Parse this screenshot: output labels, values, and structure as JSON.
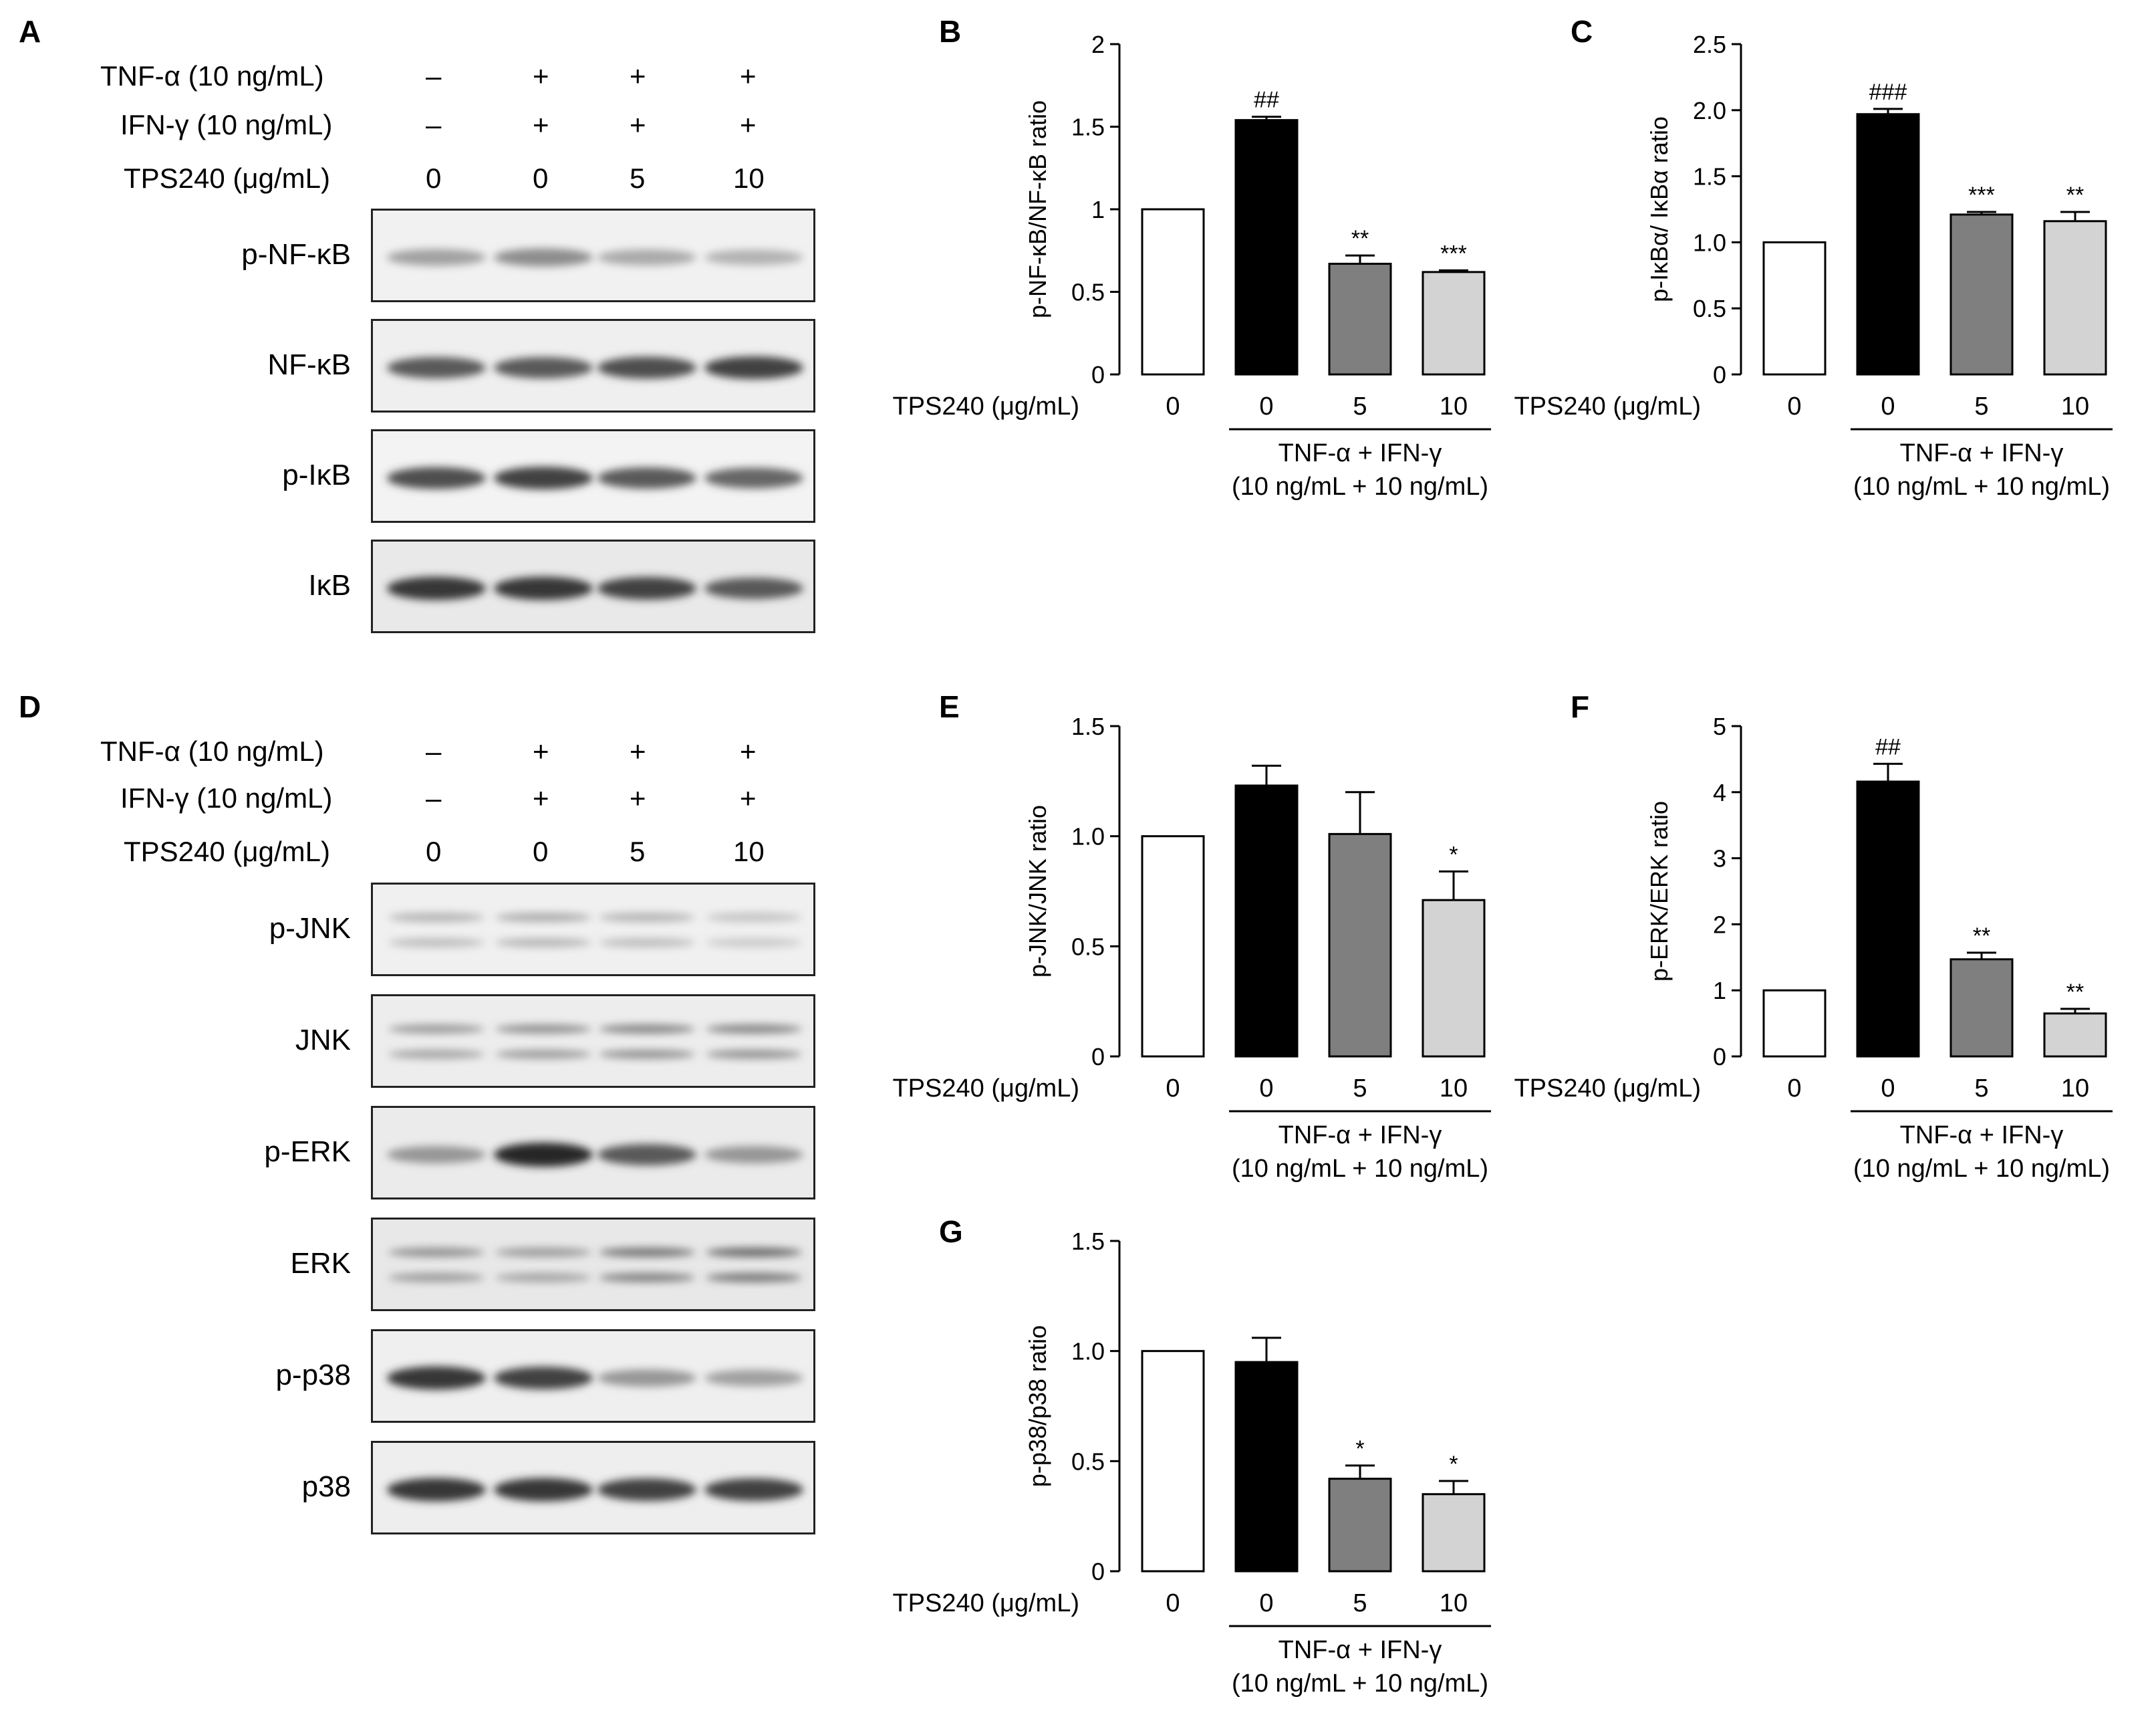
{
  "panels": {
    "A": "A",
    "B": "B",
    "C": "C",
    "D": "D",
    "E": "E",
    "F": "F",
    "G": "G"
  },
  "conditions": {
    "tnf": "TNF-α (10 ng/mL)",
    "ifn": "IFN-γ (10 ng/mL)",
    "tps": "TPS240 (μg/mL)",
    "tnf_marks": [
      "–",
      "+",
      "+",
      "+"
    ],
    "ifn_marks": [
      "–",
      "+",
      "+",
      "+"
    ],
    "tps_doses": [
      "0",
      "0",
      "5",
      "10"
    ]
  },
  "blots_A": [
    {
      "label": "p-NF-κB",
      "bands": [
        0.45,
        0.55,
        0.4,
        0.35
      ],
      "bg": "#f1f1f1",
      "double": false
    },
    {
      "label": "NF-κB",
      "bands": [
        0.8,
        0.8,
        0.85,
        0.9
      ],
      "bg": "#efefef",
      "double": false
    },
    {
      "label": "p-IκB",
      "bands": [
        0.85,
        0.9,
        0.8,
        0.75
      ],
      "bg": "#f3f3f3",
      "double": false
    },
    {
      "label": "IκB",
      "bands": [
        0.95,
        0.95,
        0.9,
        0.8
      ],
      "bg": "#e9e9e9",
      "double": false
    }
  ],
  "blots_D": [
    {
      "label": "p-JNK",
      "bands": [
        0.3,
        0.35,
        0.3,
        0.2
      ],
      "bg": "#f0f0f0",
      "double": true
    },
    {
      "label": "JNK",
      "bands": [
        0.45,
        0.5,
        0.55,
        0.55
      ],
      "bg": "#ededed",
      "double": true
    },
    {
      "label": "p-ERK",
      "bands": [
        0.5,
        1.0,
        0.8,
        0.5
      ],
      "bg": "#ebebeb",
      "double": false
    },
    {
      "label": "ERK",
      "bands": [
        0.5,
        0.45,
        0.65,
        0.7
      ],
      "bg": "#e8e8e8",
      "double": true
    },
    {
      "label": "p-p38",
      "bands": [
        0.95,
        0.9,
        0.5,
        0.45
      ],
      "bg": "#efefef",
      "double": false
    },
    {
      "label": "p38",
      "bands": [
        0.95,
        0.95,
        0.9,
        0.9
      ],
      "bg": "#eeeeee",
      "double": false
    }
  ],
  "bar_colors": [
    "#ffffff",
    "#000000",
    "#7f7f7f",
    "#d3d3d3"
  ],
  "chart_data": [
    {
      "type": "bar",
      "panel": "B",
      "categories": [
        "0",
        "0",
        "5",
        "10"
      ],
      "values": [
        1.0,
        1.54,
        0.67,
        0.62
      ],
      "errors": [
        0,
        0.02,
        0.05,
        0.01
      ],
      "annotations": [
        "",
        "##",
        "**",
        "***"
      ],
      "ylabel": "p-NF-κB/NF-κB ratio",
      "xprefix": "TPS240 (μg/mL)",
      "bracket1": "TNF-α + IFN-γ",
      "bracket2": "(10 ng/mL + 10 ng/mL)",
      "ylim": [
        0,
        2
      ],
      "yticks": [
        0,
        0.5,
        1,
        1.5,
        2
      ],
      "yticklabels": [
        "0",
        "0.5",
        "1",
        "1.5",
        "2"
      ]
    },
    {
      "type": "bar",
      "panel": "C",
      "categories": [
        "0",
        "0",
        "5",
        "10"
      ],
      "values": [
        1.0,
        1.97,
        1.21,
        1.16
      ],
      "errors": [
        0,
        0.04,
        0.02,
        0.07
      ],
      "annotations": [
        "",
        "###",
        "***",
        "**"
      ],
      "ylabel": "p-IκBα/ IκBα ratio",
      "xprefix": "TPS240 (μg/mL)",
      "bracket1": "TNF-α + IFN-γ",
      "bracket2": "(10 ng/mL + 10 ng/mL)",
      "ylim": [
        0,
        2.5
      ],
      "yticks": [
        0,
        0.5,
        1,
        1.5,
        2,
        2.5
      ],
      "yticklabels": [
        "0",
        "0.5",
        "1.0",
        "1.5",
        "2.0",
        "2.5"
      ]
    },
    {
      "type": "bar",
      "panel": "E",
      "categories": [
        "0",
        "0",
        "5",
        "10"
      ],
      "values": [
        1.0,
        1.23,
        1.01,
        0.71
      ],
      "errors": [
        0,
        0.09,
        0.19,
        0.13
      ],
      "annotations": [
        "",
        "",
        "",
        "*"
      ],
      "ylabel": "p-JNK/JNK ratio",
      "xprefix": "TPS240 (μg/mL)",
      "bracket1": "TNF-α + IFN-γ",
      "bracket2": "(10 ng/mL + 10 ng/mL)",
      "ylim": [
        0,
        1.5
      ],
      "yticks": [
        0,
        0.5,
        1,
        1.5
      ],
      "yticklabels": [
        "0",
        "0.5",
        "1.0",
        "1.5"
      ]
    },
    {
      "type": "bar",
      "panel": "F",
      "categories": [
        "0",
        "0",
        "5",
        "10"
      ],
      "values": [
        1.0,
        4.16,
        1.47,
        0.65
      ],
      "errors": [
        0,
        0.27,
        0.1,
        0.07
      ],
      "annotations": [
        "",
        "##",
        "**",
        "**"
      ],
      "ylabel": "p-ERK/ERK ratio",
      "xprefix": "TPS240 (μg/mL)",
      "bracket1": "TNF-α + IFN-γ",
      "bracket2": "(10 ng/mL + 10 ng/mL)",
      "ylim": [
        0,
        5
      ],
      "yticks": [
        0,
        1,
        2,
        3,
        4,
        5
      ],
      "yticklabels": [
        "0",
        "1",
        "2",
        "3",
        "4",
        "5"
      ]
    },
    {
      "type": "bar",
      "panel": "G",
      "categories": [
        "0",
        "0",
        "5",
        "10"
      ],
      "values": [
        1.0,
        0.95,
        0.42,
        0.35
      ],
      "errors": [
        0,
        0.11,
        0.06,
        0.06
      ],
      "annotations": [
        "",
        "",
        "*",
        "*"
      ],
      "ylabel": "p-p38/p38 ratio",
      "xprefix": "TPS240 (μg/mL)",
      "bracket1": "TNF-α + IFN-γ",
      "bracket2": "(10 ng/mL + 10 ng/mL)",
      "ylim": [
        0,
        1.5
      ],
      "yticks": [
        0,
        0.5,
        1,
        1.5
      ],
      "yticklabels": [
        "0",
        "0.5",
        "1.0",
        "1.5"
      ]
    }
  ]
}
